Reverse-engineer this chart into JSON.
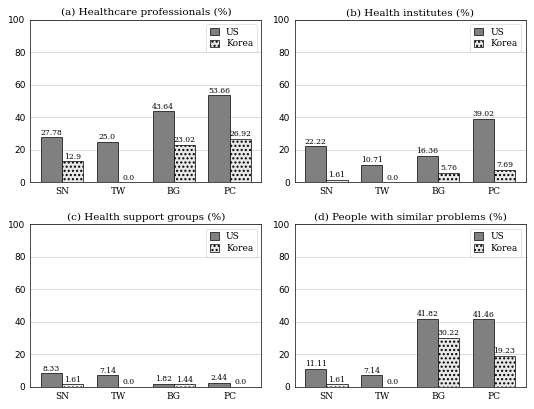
{
  "subplots": [
    {
      "title": "(a) Healthcare professionals (%)",
      "categories": [
        "SN",
        "TW",
        "BG",
        "PC"
      ],
      "us_values": [
        27.78,
        25.0,
        43.64,
        53.66
      ],
      "korea_values": [
        12.9,
        0.0,
        23.02,
        26.92
      ],
      "ylim": [
        0,
        100
      ],
      "yticks": [
        0,
        20,
        40,
        60,
        80,
        100
      ]
    },
    {
      "title": "(b) Health institutes (%)",
      "categories": [
        "SN",
        "TW",
        "BG",
        "PC"
      ],
      "us_values": [
        22.22,
        10.71,
        16.36,
        39.02
      ],
      "korea_values": [
        1.61,
        0.0,
        5.76,
        7.69
      ],
      "ylim": [
        0,
        100
      ],
      "yticks": [
        0,
        20,
        40,
        60,
        80,
        100
      ]
    },
    {
      "title": "(c) Health support groups (%)",
      "categories": [
        "SN",
        "TW",
        "BG",
        "PC"
      ],
      "us_values": [
        8.33,
        7.14,
        1.82,
        2.44
      ],
      "korea_values": [
        1.61,
        0.0,
        1.44,
        0.0
      ],
      "ylim": [
        0,
        100
      ],
      "yticks": [
        0,
        20,
        40,
        60,
        80,
        100
      ]
    },
    {
      "title": "(d) People with similar problems (%)",
      "categories": [
        "SN",
        "TW",
        "BG",
        "PC"
      ],
      "us_values": [
        11.11,
        7.14,
        41.82,
        41.46
      ],
      "korea_values": [
        1.61,
        0.0,
        30.22,
        19.23
      ],
      "ylim": [
        0,
        100
      ],
      "yticks": [
        0,
        20,
        40,
        60,
        80,
        100
      ]
    }
  ],
  "us_color": "#808080",
  "korea_color": "#e8e8e8",
  "korea_hatch": "....",
  "bar_width": 0.38,
  "label_fontsize": 5.5,
  "title_fontsize": 7.5,
  "tick_fontsize": 6.5,
  "legend_fontsize": 6.5
}
